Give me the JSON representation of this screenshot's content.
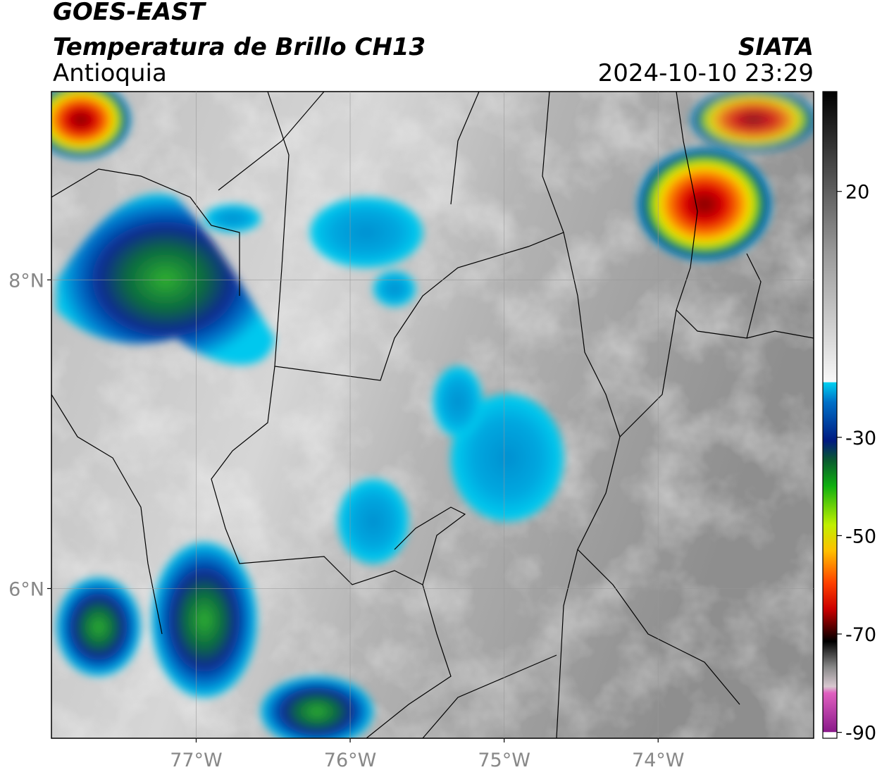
{
  "header": {
    "title": "GOES-EAST",
    "subtitle": "Temperatura de Brillo CH13",
    "agency": "SIATA",
    "region": "Antioquia",
    "datetime": "2024-10-10 23:29"
  },
  "map": {
    "xlim": [
      -77.94,
      -72.99
    ],
    "ylim": [
      5.03,
      9.22
    ],
    "xticks": [
      {
        "value": -77,
        "label": "77°W"
      },
      {
        "value": -76,
        "label": "76°W"
      },
      {
        "value": -75,
        "label": "75°W"
      },
      {
        "value": -74,
        "label": "74°W"
      }
    ],
    "yticks": [
      {
        "value": 6,
        "label": "6°N"
      },
      {
        "value": 8,
        "label": "8°N"
      }
    ]
  },
  "colorbar": {
    "lim": [
      -91.2,
      40.3
    ],
    "ticks": [
      20,
      -30,
      -50,
      -70,
      -90
    ]
  }
}
